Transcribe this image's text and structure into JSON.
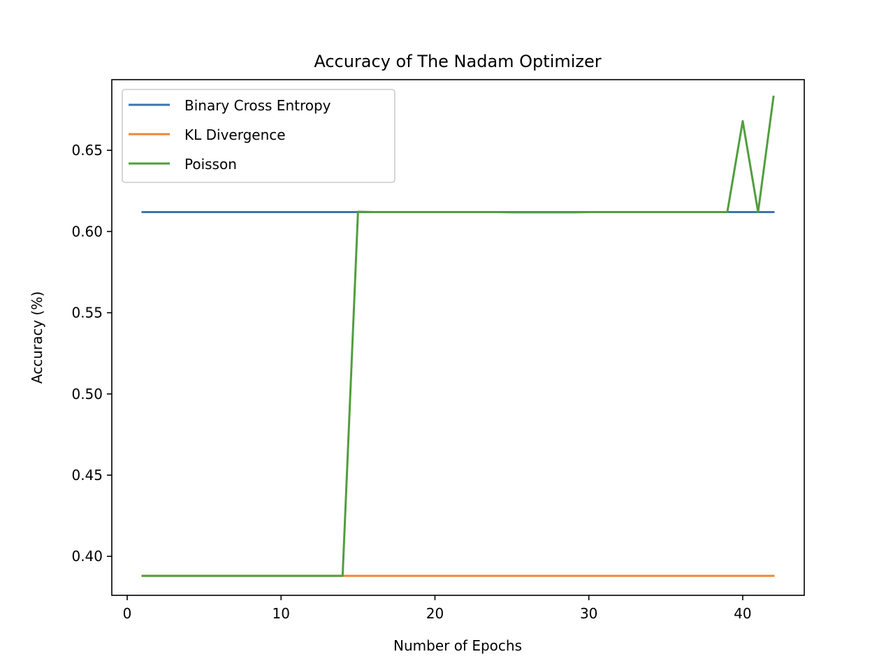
{
  "chart_data": {
    "type": "line",
    "title": "Accuracy of The Nadam Optimizer",
    "xlabel": "Number of Epochs",
    "ylabel": "Accuracy (%)",
    "xlim": [
      -1,
      44
    ],
    "ylim": [
      0.376,
      0.6935
    ],
    "xticks": [
      0,
      10,
      20,
      30,
      40
    ],
    "yticks": [
      0.4,
      0.45,
      0.5,
      0.55,
      0.6,
      0.65
    ],
    "xtick_labels": [
      "0",
      "10",
      "20",
      "30",
      "40"
    ],
    "ytick_labels": [
      "0.40",
      "0.45",
      "0.50",
      "0.55",
      "0.60",
      "0.65"
    ],
    "grid": false,
    "legend_position": "upper-left",
    "x": [
      1,
      2,
      3,
      4,
      5,
      6,
      7,
      8,
      9,
      10,
      11,
      12,
      13,
      14,
      15,
      16,
      17,
      18,
      19,
      20,
      21,
      22,
      23,
      24,
      25,
      26,
      27,
      28,
      29,
      30,
      31,
      32,
      33,
      34,
      35,
      36,
      37,
      38,
      39,
      40,
      41,
      42
    ],
    "series": [
      {
        "name": "Binary Cross Entropy",
        "color": "#3b75af",
        "values": [
          0.612,
          0.612,
          0.612,
          0.612,
          0.612,
          0.612,
          0.612,
          0.612,
          0.612,
          0.612,
          0.612,
          0.612,
          0.612,
          0.612,
          0.612,
          0.612,
          0.612,
          0.612,
          0.612,
          0.612,
          0.612,
          0.612,
          0.612,
          0.612,
          0.612,
          0.612,
          0.612,
          0.612,
          0.612,
          0.612,
          0.612,
          0.612,
          0.612,
          0.612,
          0.612,
          0.612,
          0.612,
          0.612,
          0.612,
          0.612,
          0.612,
          0.612
        ]
      },
      {
        "name": "KL Divergence",
        "color": "#ef8636",
        "values": [
          0.388,
          0.388,
          0.388,
          0.388,
          0.388,
          0.388,
          0.388,
          0.388,
          0.388,
          0.388,
          0.388,
          0.388,
          0.388,
          0.388,
          0.388,
          0.388,
          0.388,
          0.388,
          0.388,
          0.388,
          0.388,
          0.388,
          0.388,
          0.388,
          0.388,
          0.388,
          0.388,
          0.388,
          0.388,
          0.388,
          0.388,
          0.388,
          0.388,
          0.388,
          0.388,
          0.388,
          0.388,
          0.388,
          0.388,
          0.388,
          0.388,
          0.388
        ]
      },
      {
        "name": "Poisson",
        "color": "#519e3e",
        "values": [
          0.388,
          0.388,
          0.388,
          0.388,
          0.388,
          0.388,
          0.388,
          0.388,
          0.388,
          0.388,
          0.388,
          0.388,
          0.388,
          0.388,
          0.6122,
          0.612,
          0.612,
          0.612,
          0.612,
          0.612,
          0.612,
          0.612,
          0.612,
          0.612,
          0.6118,
          0.6118,
          0.6118,
          0.6118,
          0.6118,
          0.612,
          0.612,
          0.612,
          0.612,
          0.612,
          0.612,
          0.612,
          0.612,
          0.612,
          0.612,
          0.668,
          0.612,
          0.683
        ]
      }
    ]
  }
}
